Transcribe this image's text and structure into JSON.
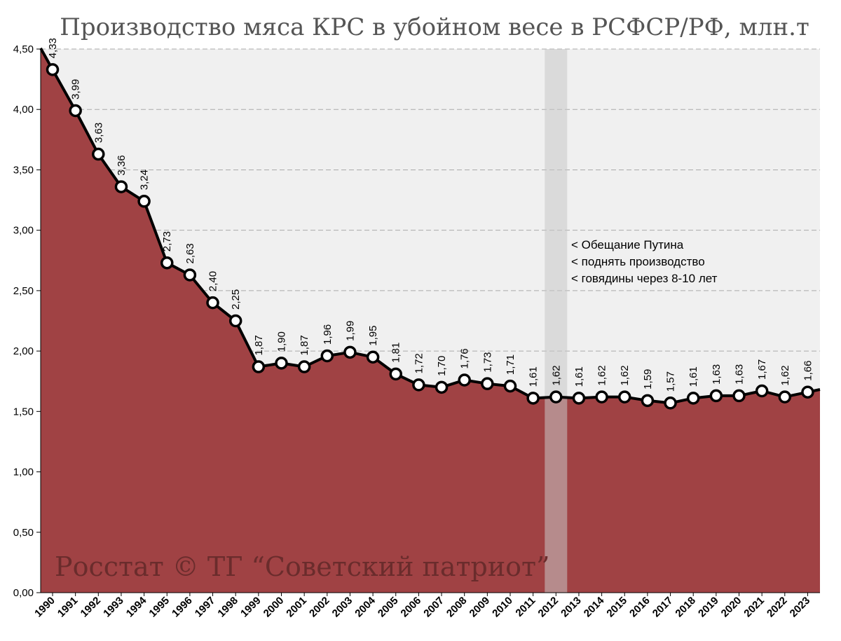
{
  "chart_data": {
    "type": "area",
    "title": "Производство мяса КРС в убойном весе в РСФСР/РФ, млн.т",
    "categories": [
      "1990",
      "1991",
      "1992",
      "1993",
      "1994",
      "1995",
      "1996",
      "1997",
      "1998",
      "1999",
      "2000",
      "2001",
      "2002",
      "2003",
      "2004",
      "2005",
      "2006",
      "2007",
      "2008",
      "2009",
      "2010",
      "2011",
      "2012",
      "2013",
      "2014",
      "2015",
      "2016",
      "2017",
      "2018",
      "2019",
      "2020",
      "2021",
      "2022",
      "2023"
    ],
    "values": [
      4.33,
      3.99,
      3.63,
      3.36,
      3.24,
      2.73,
      2.63,
      2.4,
      2.25,
      1.87,
      1.9,
      1.87,
      1.96,
      1.99,
      1.95,
      1.81,
      1.72,
      1.7,
      1.76,
      1.73,
      1.71,
      1.61,
      1.62,
      1.61,
      1.62,
      1.62,
      1.59,
      1.57,
      1.61,
      1.63,
      1.63,
      1.67,
      1.62,
      1.66
    ],
    "value_labels": [
      "4,33",
      "3,99",
      "3,63",
      "3,36",
      "3,24",
      "2,73",
      "2,63",
      "2,40",
      "2,25",
      "1,87",
      "1,90",
      "1,87",
      "1,96",
      "1,99",
      "1,95",
      "1,81",
      "1,72",
      "1,70",
      "1,76",
      "1,73",
      "1,71",
      "1,61",
      "1,62",
      "1,61",
      "1,62",
      "1,62",
      "1,59",
      "1,57",
      "1,61",
      "1,63",
      "1,63",
      "1,67",
      "1,62",
      "1,66"
    ],
    "ylim": [
      0,
      4.5
    ],
    "yticks": [
      0,
      0.5,
      1.0,
      1.5,
      2.0,
      2.5,
      3.0,
      3.5,
      4.0,
      4.5
    ],
    "ytick_labels": [
      "0,00",
      "0,50",
      "1,00",
      "1,50",
      "2,00",
      "2,50",
      "3,00",
      "3,50",
      "4,00",
      "4,50"
    ],
    "xlabel": "",
    "ylabel": "",
    "grid": true,
    "highlight_year": "2012",
    "annotation_lines": [
      "< Обещание Путина",
      "< поднять производство",
      "< говядины через 8-10 лет"
    ],
    "watermark": "Росстат © ТГ “Советский патриот”",
    "colors": {
      "area": "#a04244",
      "plot_bg": "#f0f0f0",
      "line": "#000000",
      "marker_fill": "#ffffff",
      "highlight": "#c8c8c8",
      "grid": "#aaaaaa"
    }
  }
}
